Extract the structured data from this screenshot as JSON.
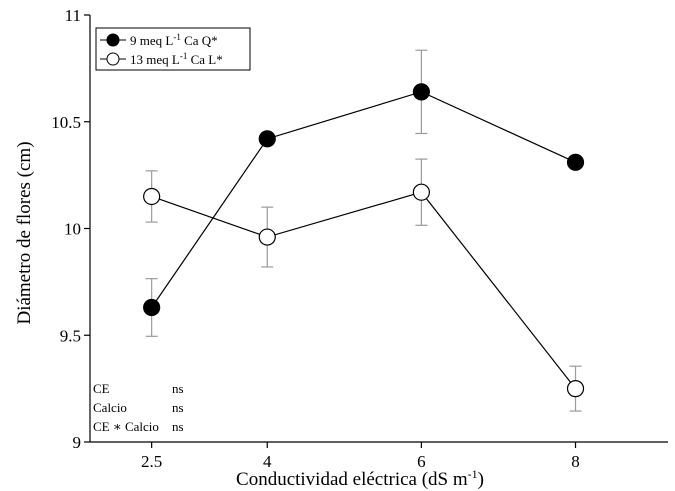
{
  "chart_data": {
    "type": "line",
    "title": "",
    "xlabel": "Conductividad eléctrica (dS m",
    "xlabel_sup": "-1",
    "xlabel_tail": ")",
    "ylabel": "Diámetro de flores (cm)",
    "x": [
      2.5,
      4,
      6,
      8
    ],
    "x_tick_labels": [
      "2.5",
      "4",
      "6",
      "8"
    ],
    "xlim": [
      1.7,
      9.2
    ],
    "ylim": [
      9,
      11
    ],
    "y_ticks": [
      9,
      9.5,
      10,
      10.5,
      11
    ],
    "y_tick_labels": [
      "9",
      "9.5",
      "10",
      "10.5",
      "11"
    ],
    "grid": false,
    "legend_position": "top-left",
    "series": [
      {
        "name_parts": [
          "9 meq L",
          "-1",
          " Ca Q*"
        ],
        "marker": "filled-circle",
        "color": "#000000",
        "values": [
          9.63,
          10.42,
          10.64,
          10.31
        ],
        "error": [
          0.135,
          null,
          0.195,
          null
        ]
      },
      {
        "name_parts": [
          "13 meq L",
          "-1",
          " Ca L*"
        ],
        "marker": "open-circle",
        "color": "#000000",
        "values": [
          10.15,
          9.96,
          10.17,
          9.25
        ],
        "error": [
          0.12,
          0.14,
          0.155,
          0.105
        ]
      }
    ],
    "annotations": [
      {
        "label": "CE",
        "value": "ns"
      },
      {
        "label": "Calcio",
        "value": "ns"
      },
      {
        "label": "CE ∗ Calcio",
        "value": "ns"
      }
    ]
  }
}
